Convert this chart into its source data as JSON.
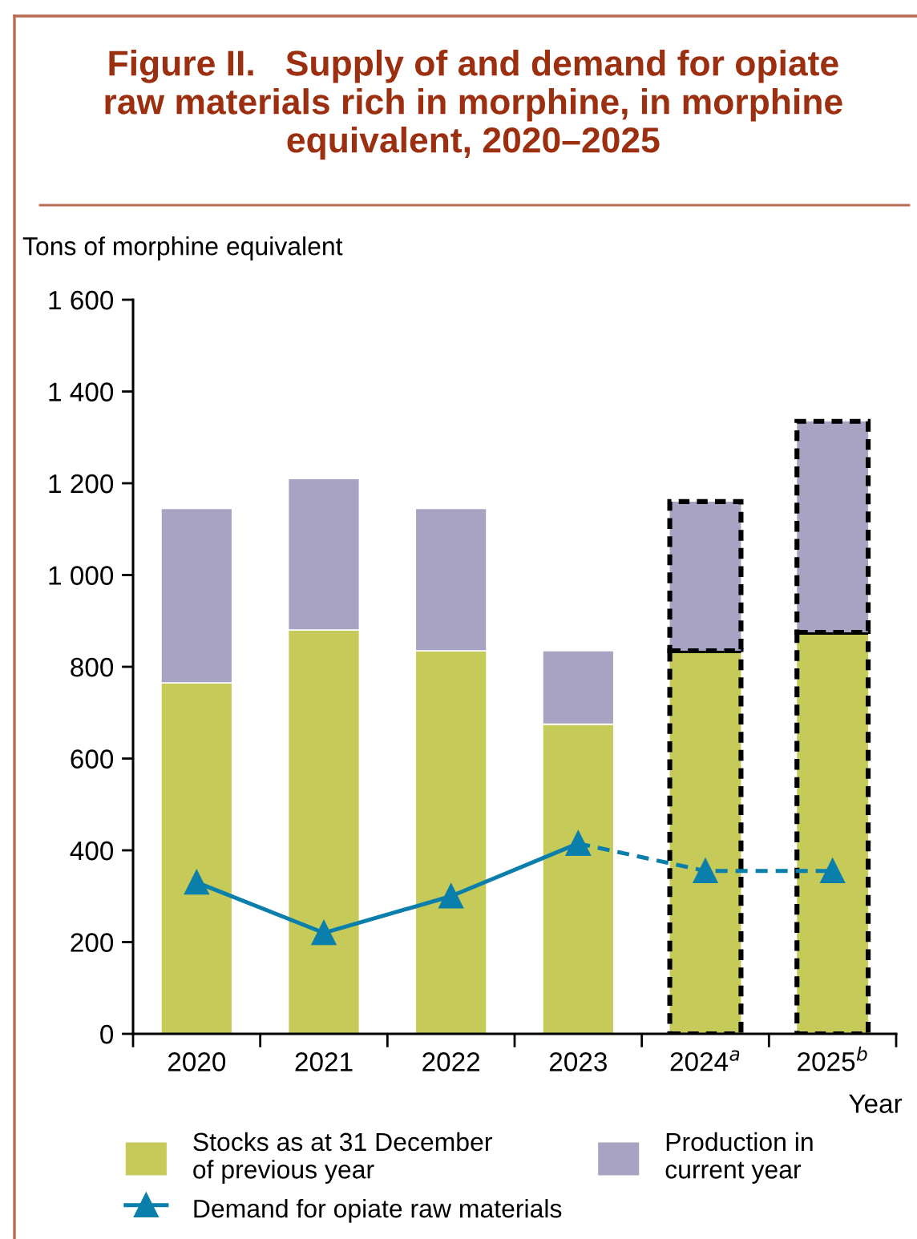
{
  "chart_data": {
    "type": "bar",
    "title": "Figure II.   Supply of and demand for opiate\nraw materials rich in morphine, in morphine\nequivalent, 2020–2025",
    "xlabel": "Year",
    "ylabel": "Tons of morphine equivalent",
    "categories": [
      "2020",
      "2021",
      "2022",
      "2023",
      "2024$^{a}$",
      "2025$^{b}$"
    ],
    "stacked": true,
    "series": [
      {
        "name": "Stocks as at 31 December\nof previous year",
        "color": "#c5ca58",
        "values": [
          765,
          880,
          835,
          675,
          835,
          875
        ],
        "line_style": [
          "none",
          "none",
          "none",
          "none",
          "dashed",
          "dashed"
        ]
      },
      {
        "name": "Production in\ncurrent year",
        "color": "#a9a3c3",
        "values": [
          380,
          330,
          310,
          160,
          325,
          460
        ],
        "line_style": [
          "none",
          "none",
          "none",
          "none",
          "dashed",
          "dashed"
        ]
      },
      {
        "type": "line",
        "name": "Demand for opiate raw materials",
        "color": "#0a7fab",
        "values": [
          330,
          220,
          300,
          415,
          null,
          null
        ],
        "marker": "triangle",
        "line_style": "solid"
      },
      {
        "type": "line",
        "color": "#0a7fab",
        "values": [
          null,
          null,
          null,
          415,
          355,
          355
        ],
        "marker": "triangle",
        "line_style": "dashed"
      }
    ],
    "ylim": [
      0,
      1600
    ],
    "yticks": [
      0,
      200,
      400,
      600,
      800,
      {
        "value": 1000,
        "label": "1 000"
      },
      {
        "value": 1200,
        "label": "1 200"
      },
      {
        "value": 1400,
        "label": "1 400"
      },
      {
        "value": 1600,
        "label": "1 600"
      }
    ],
    "legend": "bottom"
  }
}
